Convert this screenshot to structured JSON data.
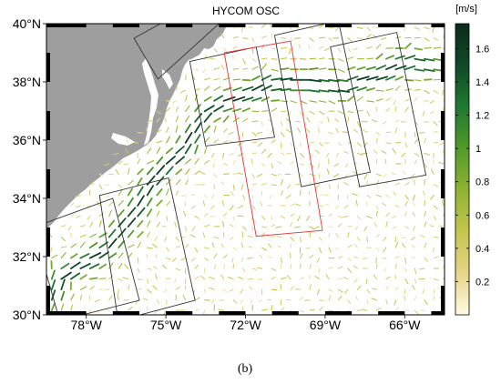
{
  "figure": {
    "title": "HYCOM OSC",
    "caption": "(b)",
    "colorbar_unit": "[m/s]"
  },
  "map": {
    "lon_range": [
      -79.5,
      -64.5
    ],
    "lat_range": [
      30,
      40
    ],
    "lon_ticks": [
      {
        "value": -78,
        "label": "78°W"
      },
      {
        "value": -75,
        "label": "75°W"
      },
      {
        "value": -72,
        "label": "72°W"
      },
      {
        "value": -69,
        "label": "69°W"
      },
      {
        "value": -66,
        "label": "66°W"
      }
    ],
    "lat_ticks": [
      {
        "value": 40,
        "label": "40°N"
      },
      {
        "value": 38,
        "label": "38°N"
      },
      {
        "value": 36,
        "label": "36°N"
      },
      {
        "value": 34,
        "label": "34°N"
      },
      {
        "value": 32,
        "label": "32°N"
      },
      {
        "value": 30,
        "label": "30°N"
      }
    ],
    "colors": {
      "land": "#9e9e9e",
      "ocean": "#ffffff",
      "swath": "#333333",
      "highlight_swath": "#e8353a"
    }
  },
  "colorbar": {
    "range": [
      0,
      1.75
    ],
    "ticks": [
      {
        "value": 0.2,
        "label": "0.2"
      },
      {
        "value": 0.4,
        "label": "0.4"
      },
      {
        "value": 0.6,
        "label": "0.6"
      },
      {
        "value": 0.8,
        "label": "0.8"
      },
      {
        "value": 1.0,
        "label": "1"
      },
      {
        "value": 1.2,
        "label": "1.2"
      },
      {
        "value": 1.4,
        "label": "1.4"
      },
      {
        "value": 1.6,
        "label": "1.6"
      }
    ],
    "colormap": [
      "#fffbe2",
      "#e7d489",
      "#c4c64d",
      "#8fb331",
      "#529a2a",
      "#1f7a30",
      "#0f4a26",
      "#0b2a1c"
    ]
  },
  "swaths": [
    {
      "name": "swath-1",
      "corners": [
        [
          -80.0,
          33.0
        ],
        [
          -77.0,
          34.0
        ],
        [
          -76.0,
          30.5
        ],
        [
          -79.0,
          29.8
        ]
      ]
    },
    {
      "name": "swath-2",
      "corners": [
        [
          -77.5,
          34.1
        ],
        [
          -74.9,
          34.7
        ],
        [
          -73.9,
          30.5
        ],
        [
          -76.8,
          29.8
        ]
      ]
    },
    {
      "name": "swath-3",
      "corners": [
        [
          -75.3,
          38.1
        ],
        [
          -73.0,
          40.0
        ],
        [
          -74.0,
          40.6
        ],
        [
          -76.2,
          39.5
        ]
      ]
    },
    {
      "name": "swath-4",
      "corners": [
        [
          -74.1,
          38.7
        ],
        [
          -71.6,
          39.2
        ],
        [
          -70.9,
          36.1
        ],
        [
          -73.5,
          35.8
        ]
      ]
    },
    {
      "name": "swath-5",
      "corners": [
        [
          -70.9,
          39.6
        ],
        [
          -68.5,
          40.1
        ],
        [
          -67.3,
          34.9
        ],
        [
          -69.9,
          34.4
        ]
      ]
    },
    {
      "name": "swath-6",
      "corners": [
        [
          -68.8,
          39.2
        ],
        [
          -66.3,
          39.7
        ],
        [
          -65.2,
          34.8
        ],
        [
          -67.7,
          34.4
        ]
      ]
    }
  ],
  "highlight_swath": {
    "name": "red-swath",
    "corners": [
      [
        -72.8,
        39.0
      ],
      [
        -70.3,
        39.4
      ],
      [
        -69.1,
        32.9
      ],
      [
        -71.6,
        32.7
      ]
    ]
  },
  "currents": {
    "gulf_stream_core": [
      [
        -79.2,
        30.6
      ],
      [
        -79.0,
        31.2
      ],
      [
        -78.4,
        31.6
      ],
      [
        -77.8,
        31.9
      ],
      [
        -77.2,
        32.3
      ],
      [
        -76.7,
        32.9
      ],
      [
        -76.2,
        33.5
      ],
      [
        -75.7,
        34.3
      ],
      [
        -75.1,
        35.0
      ],
      [
        -74.4,
        35.6
      ],
      [
        -73.9,
        36.4
      ],
      [
        -73.5,
        36.9
      ],
      [
        -73.0,
        37.2
      ],
      [
        -72.4,
        37.4
      ],
      [
        -71.8,
        37.6
      ],
      [
        -71.2,
        37.9
      ],
      [
        -70.5,
        38.0
      ],
      [
        -69.8,
        38.0
      ],
      [
        -69.1,
        37.9
      ],
      [
        -68.4,
        37.8
      ],
      [
        -67.8,
        38.0
      ],
      [
        -67.1,
        38.2
      ],
      [
        -66.4,
        38.5
      ],
      [
        -65.8,
        38.7
      ],
      [
        -65.2,
        38.6
      ]
    ]
  }
}
